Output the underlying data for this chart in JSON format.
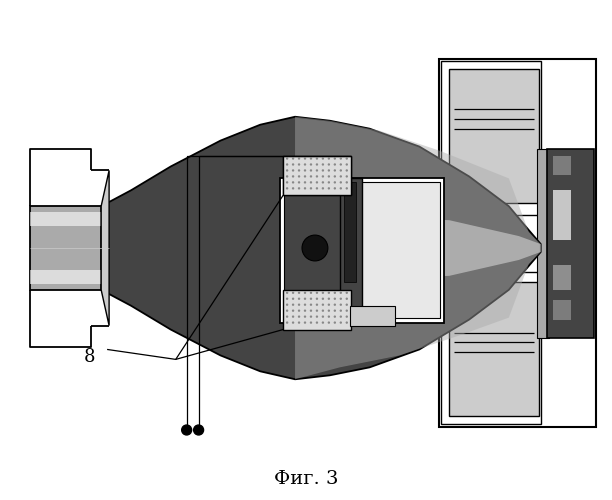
{
  "title": "Фиг. 3",
  "label_8": "8",
  "bg_color": "#ffffff",
  "lc": "#000000",
  "gray_dark": "#444444",
  "gray_med": "#777777",
  "gray_light": "#aaaaaa",
  "gray_lighter": "#cccccc",
  "gray_vlight": "#e8e8e8",
  "dot1": [
    0.305,
    0.862
  ],
  "dot2": [
    0.325,
    0.862
  ]
}
